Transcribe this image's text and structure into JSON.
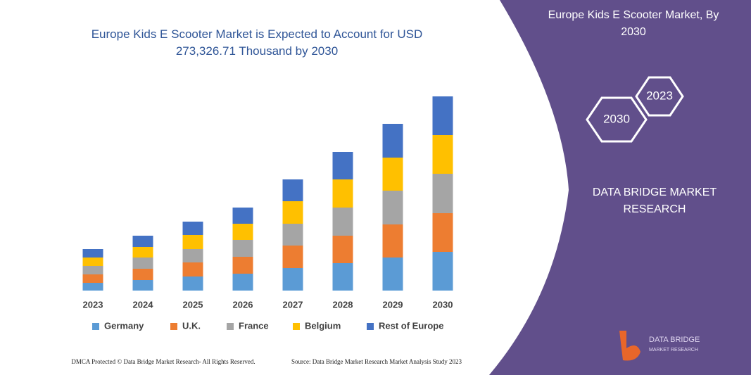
{
  "chart_data": {
    "type": "bar",
    "stacked": true,
    "title": "Europe Kids E Scooter Market is Expected to Account for USD 273,326.71 Thousand by 2030",
    "categories": [
      "2023",
      "2024",
      "2025",
      "2026",
      "2027",
      "2028",
      "2029",
      "2030"
    ],
    "series": [
      {
        "name": "Germany",
        "color": "#5b9bd5",
        "values": [
          11,
          15,
          20,
          24,
          32,
          39,
          47,
          55
        ]
      },
      {
        "name": "U.K.",
        "color": "#ed7d31",
        "values": [
          12,
          16,
          20,
          24,
          32,
          39,
          47,
          55
        ]
      },
      {
        "name": "France",
        "color": "#a5a5a5",
        "values": [
          12,
          16,
          19,
          24,
          31,
          40,
          48,
          56
        ]
      },
      {
        "name": "Belgium",
        "color": "#ffc000",
        "values": [
          12,
          15,
          20,
          23,
          32,
          40,
          47,
          55
        ]
      },
      {
        "name": "Rest of Europe",
        "color": "#4472c4",
        "values": [
          12,
          16,
          19,
          23,
          31,
          39,
          48,
          55
        ]
      }
    ]
  },
  "panel": {
    "title": "Europe Kids E Scooter Market, By 2030",
    "hexagons": [
      "2030",
      "2023"
    ],
    "brand": "DATA BRIDGE MARKET RESEARCH",
    "logo": [
      "DATA BRIDGE",
      "MARKET RESEARCH"
    ]
  },
  "footer": {
    "left": "DMCA Protected © Data Bridge Market Research- All Rights Reserved.",
    "right": "Source: Data Bridge Market Research Market Analysis Study 2023"
  }
}
